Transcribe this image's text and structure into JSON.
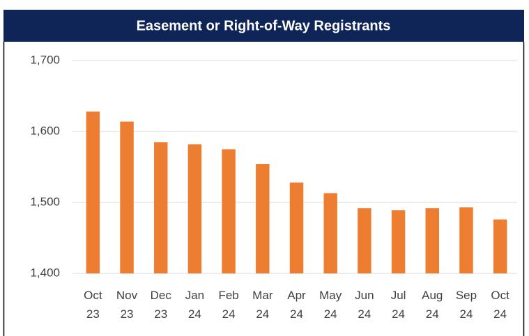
{
  "chart_data": {
    "type": "bar",
    "title": "Easement or Right-of-Way Registrants",
    "categories": [
      "Oct 23",
      "Nov 23",
      "Dec 23",
      "Jan 24",
      "Feb 24",
      "Mar 24",
      "Apr 24",
      "May 24",
      "Jun 24",
      "Jul 24",
      "Aug 24",
      "Sep 24",
      "Oct 24"
    ],
    "values": [
      1628,
      1614,
      1585,
      1582,
      1575,
      1554,
      1528,
      1513,
      1492,
      1489,
      1492,
      1493,
      1476
    ],
    "color": "#ed7d31",
    "ylim": [
      1400,
      1700
    ],
    "yticks": [
      {
        "value": 1400,
        "label": "1,400"
      },
      {
        "value": 1500,
        "label": "1,500"
      },
      {
        "value": 1600,
        "label": "1,600"
      },
      {
        "value": 1700,
        "label": "1,700"
      }
    ],
    "grid": true
  }
}
